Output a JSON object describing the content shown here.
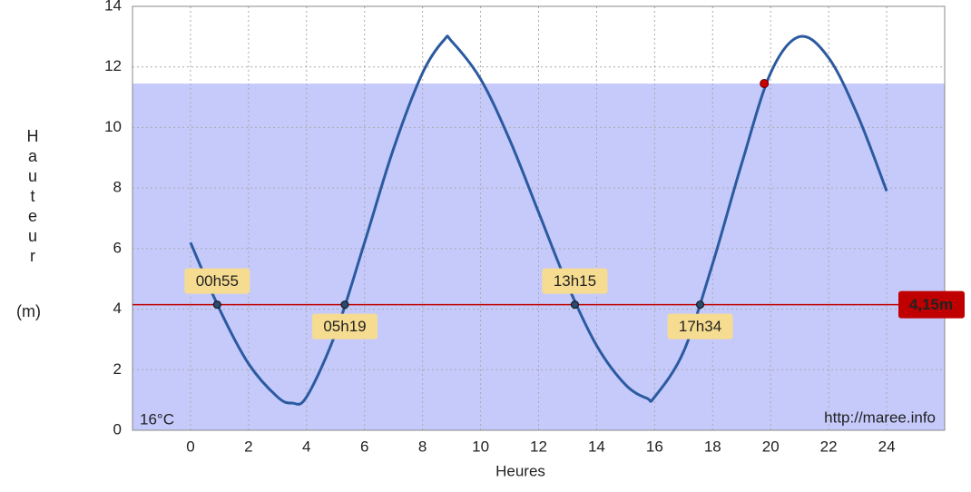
{
  "chart_data": {
    "type": "line",
    "x_label": "Heures",
    "y_label": "Hauteur",
    "y_unit": "(m)",
    "xlim": [
      -2,
      26
    ],
    "ylim": [
      0,
      14
    ],
    "xticks": [
      0,
      2,
      4,
      6,
      8,
      10,
      12,
      14,
      16,
      18,
      20,
      22,
      24
    ],
    "yticks": [
      0,
      2,
      4,
      6,
      8,
      10,
      12,
      14
    ],
    "grid": true,
    "series": [
      {
        "color": "#2c5aa0",
        "x": [
          0,
          1,
          2,
          3,
          3.5,
          4,
          5,
          6,
          7,
          8,
          8.75,
          9,
          10,
          11,
          12,
          13,
          14,
          15,
          15.75,
          16,
          17,
          18,
          19,
          20,
          21,
          22,
          23,
          24
        ],
        "values": [
          6.2,
          4.0,
          2.2,
          1.1,
          0.9,
          1.1,
          3.2,
          6.2,
          9.3,
          11.8,
          12.9,
          12.85,
          11.6,
          9.6,
          7.2,
          4.8,
          2.8,
          1.5,
          1.05,
          1.1,
          2.6,
          5.5,
          8.8,
          11.8,
          13.0,
          12.3,
          10.4,
          7.9
        ]
      }
    ],
    "reference_line": {
      "value": 4.15,
      "label": "4,15m",
      "color": "#c00000"
    },
    "crossings": [
      {
        "x": 0.92,
        "y": 4.15,
        "label": "00h55"
      },
      {
        "x": 5.32,
        "y": 4.15,
        "label": "05h19"
      },
      {
        "x": 13.25,
        "y": 4.15,
        "label": "13h15"
      },
      {
        "x": 17.57,
        "y": 4.15,
        "label": "17h34"
      }
    ],
    "current_point": {
      "x": 19.78,
      "y": 11.45,
      "color": "#cc0000"
    },
    "fill_color": "#c5cafb",
    "temperature": "16°C",
    "watermark": "http://maree.info"
  }
}
